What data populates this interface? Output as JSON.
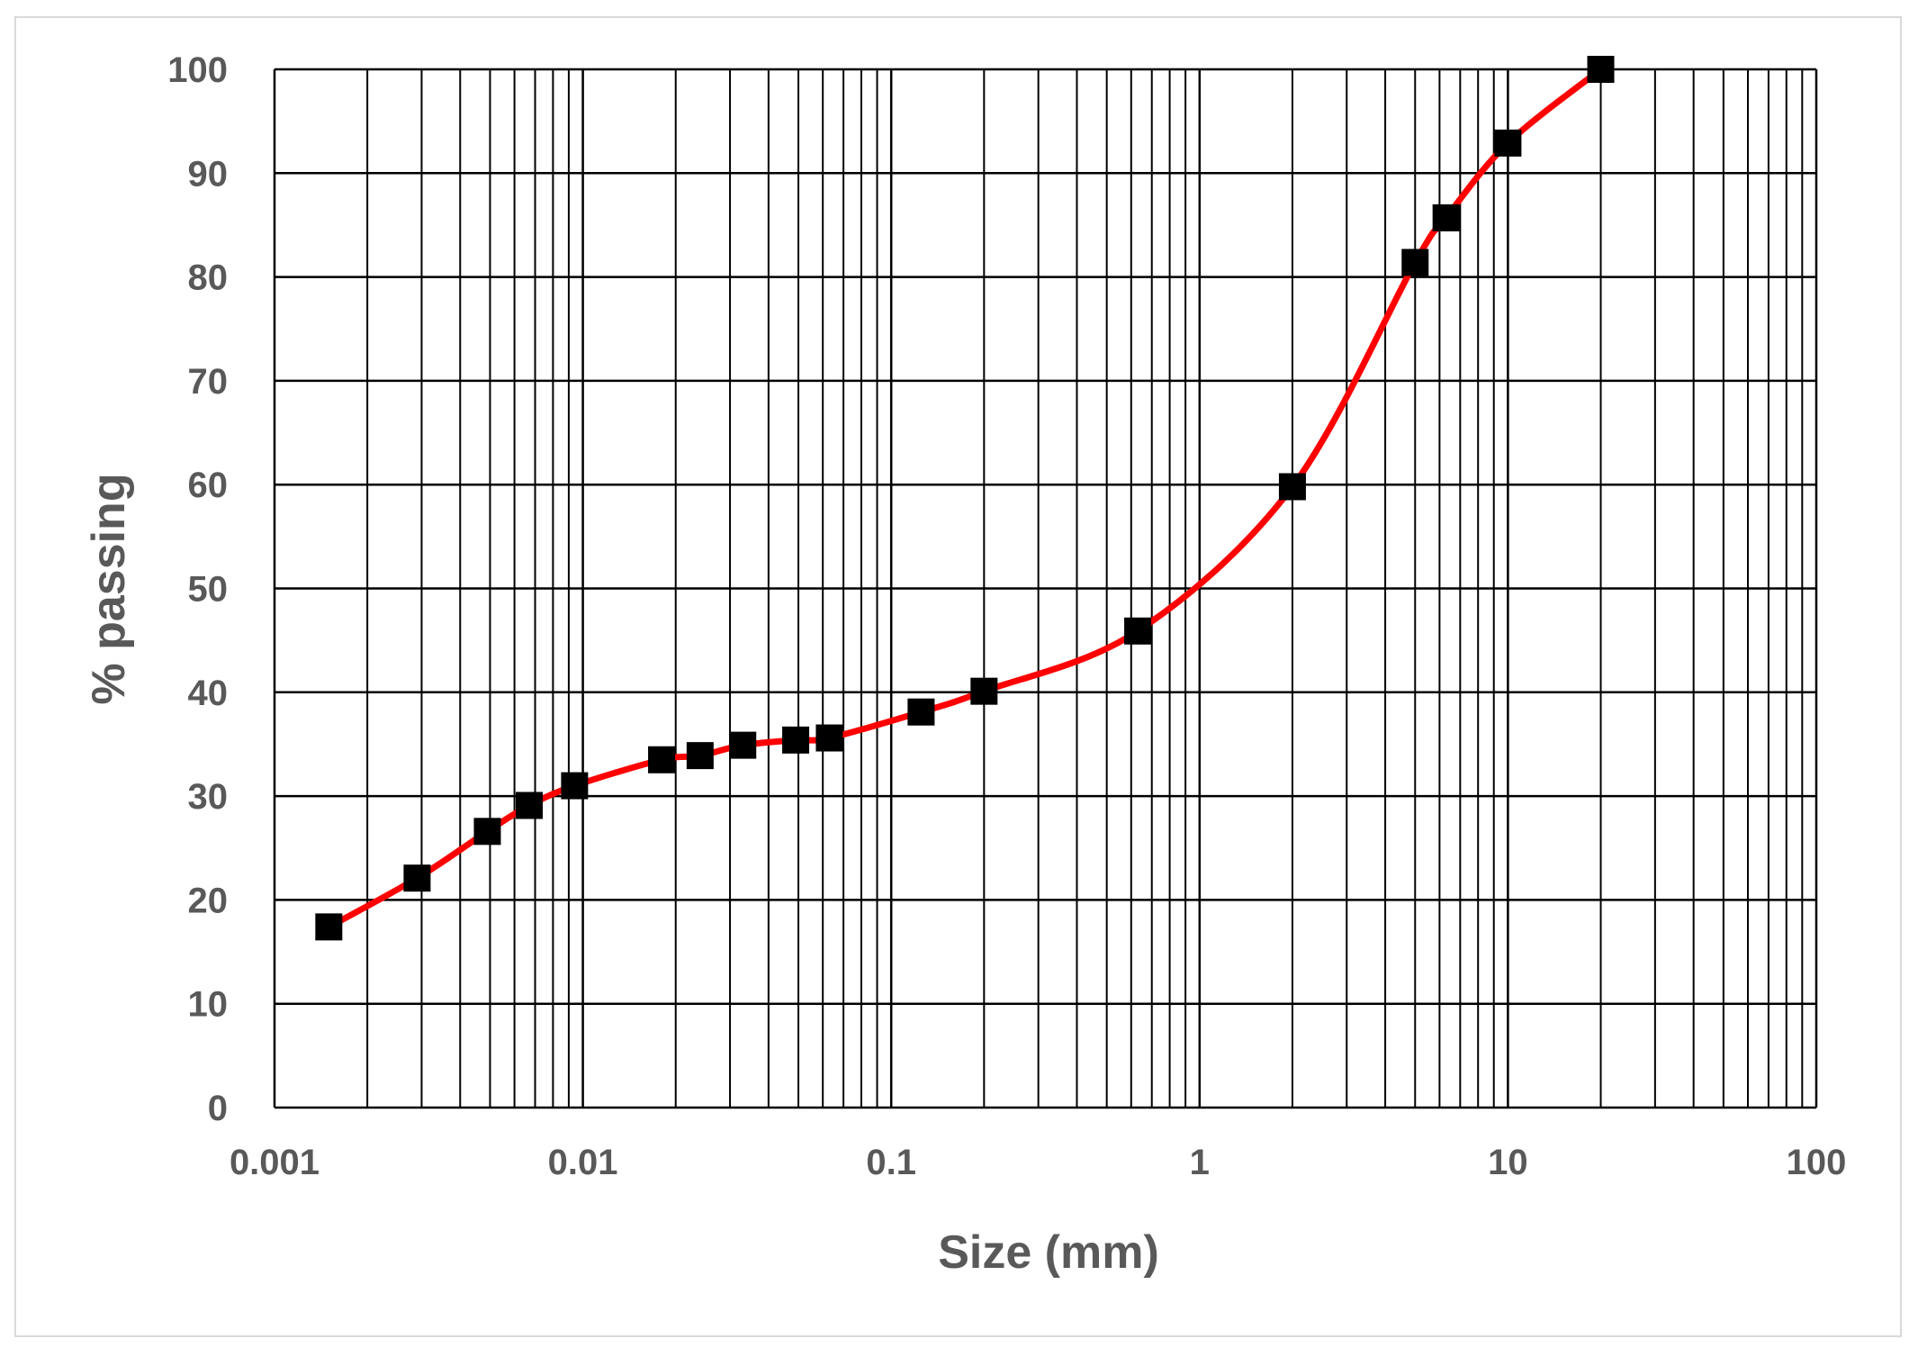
{
  "chart_data": {
    "type": "scatter",
    "title": "",
    "xlabel": "Size (mm)",
    "ylabel": "% passing",
    "x_scale": "log",
    "xlim": [
      0.001,
      100
    ],
    "ylim": [
      0,
      100
    ],
    "x_ticks": [
      "0.001",
      "0.01",
      "0.1",
      "1",
      "10",
      "100"
    ],
    "y_ticks": [
      "0",
      "10",
      "20",
      "30",
      "40",
      "50",
      "60",
      "70",
      "80",
      "90",
      "100"
    ],
    "grid": true,
    "legend": "none",
    "colors": {
      "line": "#ff0000",
      "marker": "#000000",
      "grid": "#000000",
      "text": "#595959"
    },
    "series": [
      {
        "points": [
          [
            0.0015,
            17.4
          ],
          [
            0.0029,
            22.1
          ],
          [
            0.0049,
            26.6
          ],
          [
            0.0067,
            29.1
          ],
          [
            0.0094,
            31.0
          ],
          [
            0.018,
            33.5
          ],
          [
            0.024,
            33.9
          ],
          [
            0.033,
            34.9
          ],
          [
            0.049,
            35.4
          ],
          [
            0.063,
            35.6
          ],
          [
            0.125,
            38.1
          ],
          [
            0.2,
            40.1
          ],
          [
            0.63,
            45.9
          ],
          [
            2.0,
            59.8
          ],
          [
            5.0,
            81.4
          ],
          [
            6.3,
            85.7
          ],
          [
            10.0,
            92.9
          ],
          [
            20.0,
            100.0
          ]
        ]
      }
    ]
  }
}
